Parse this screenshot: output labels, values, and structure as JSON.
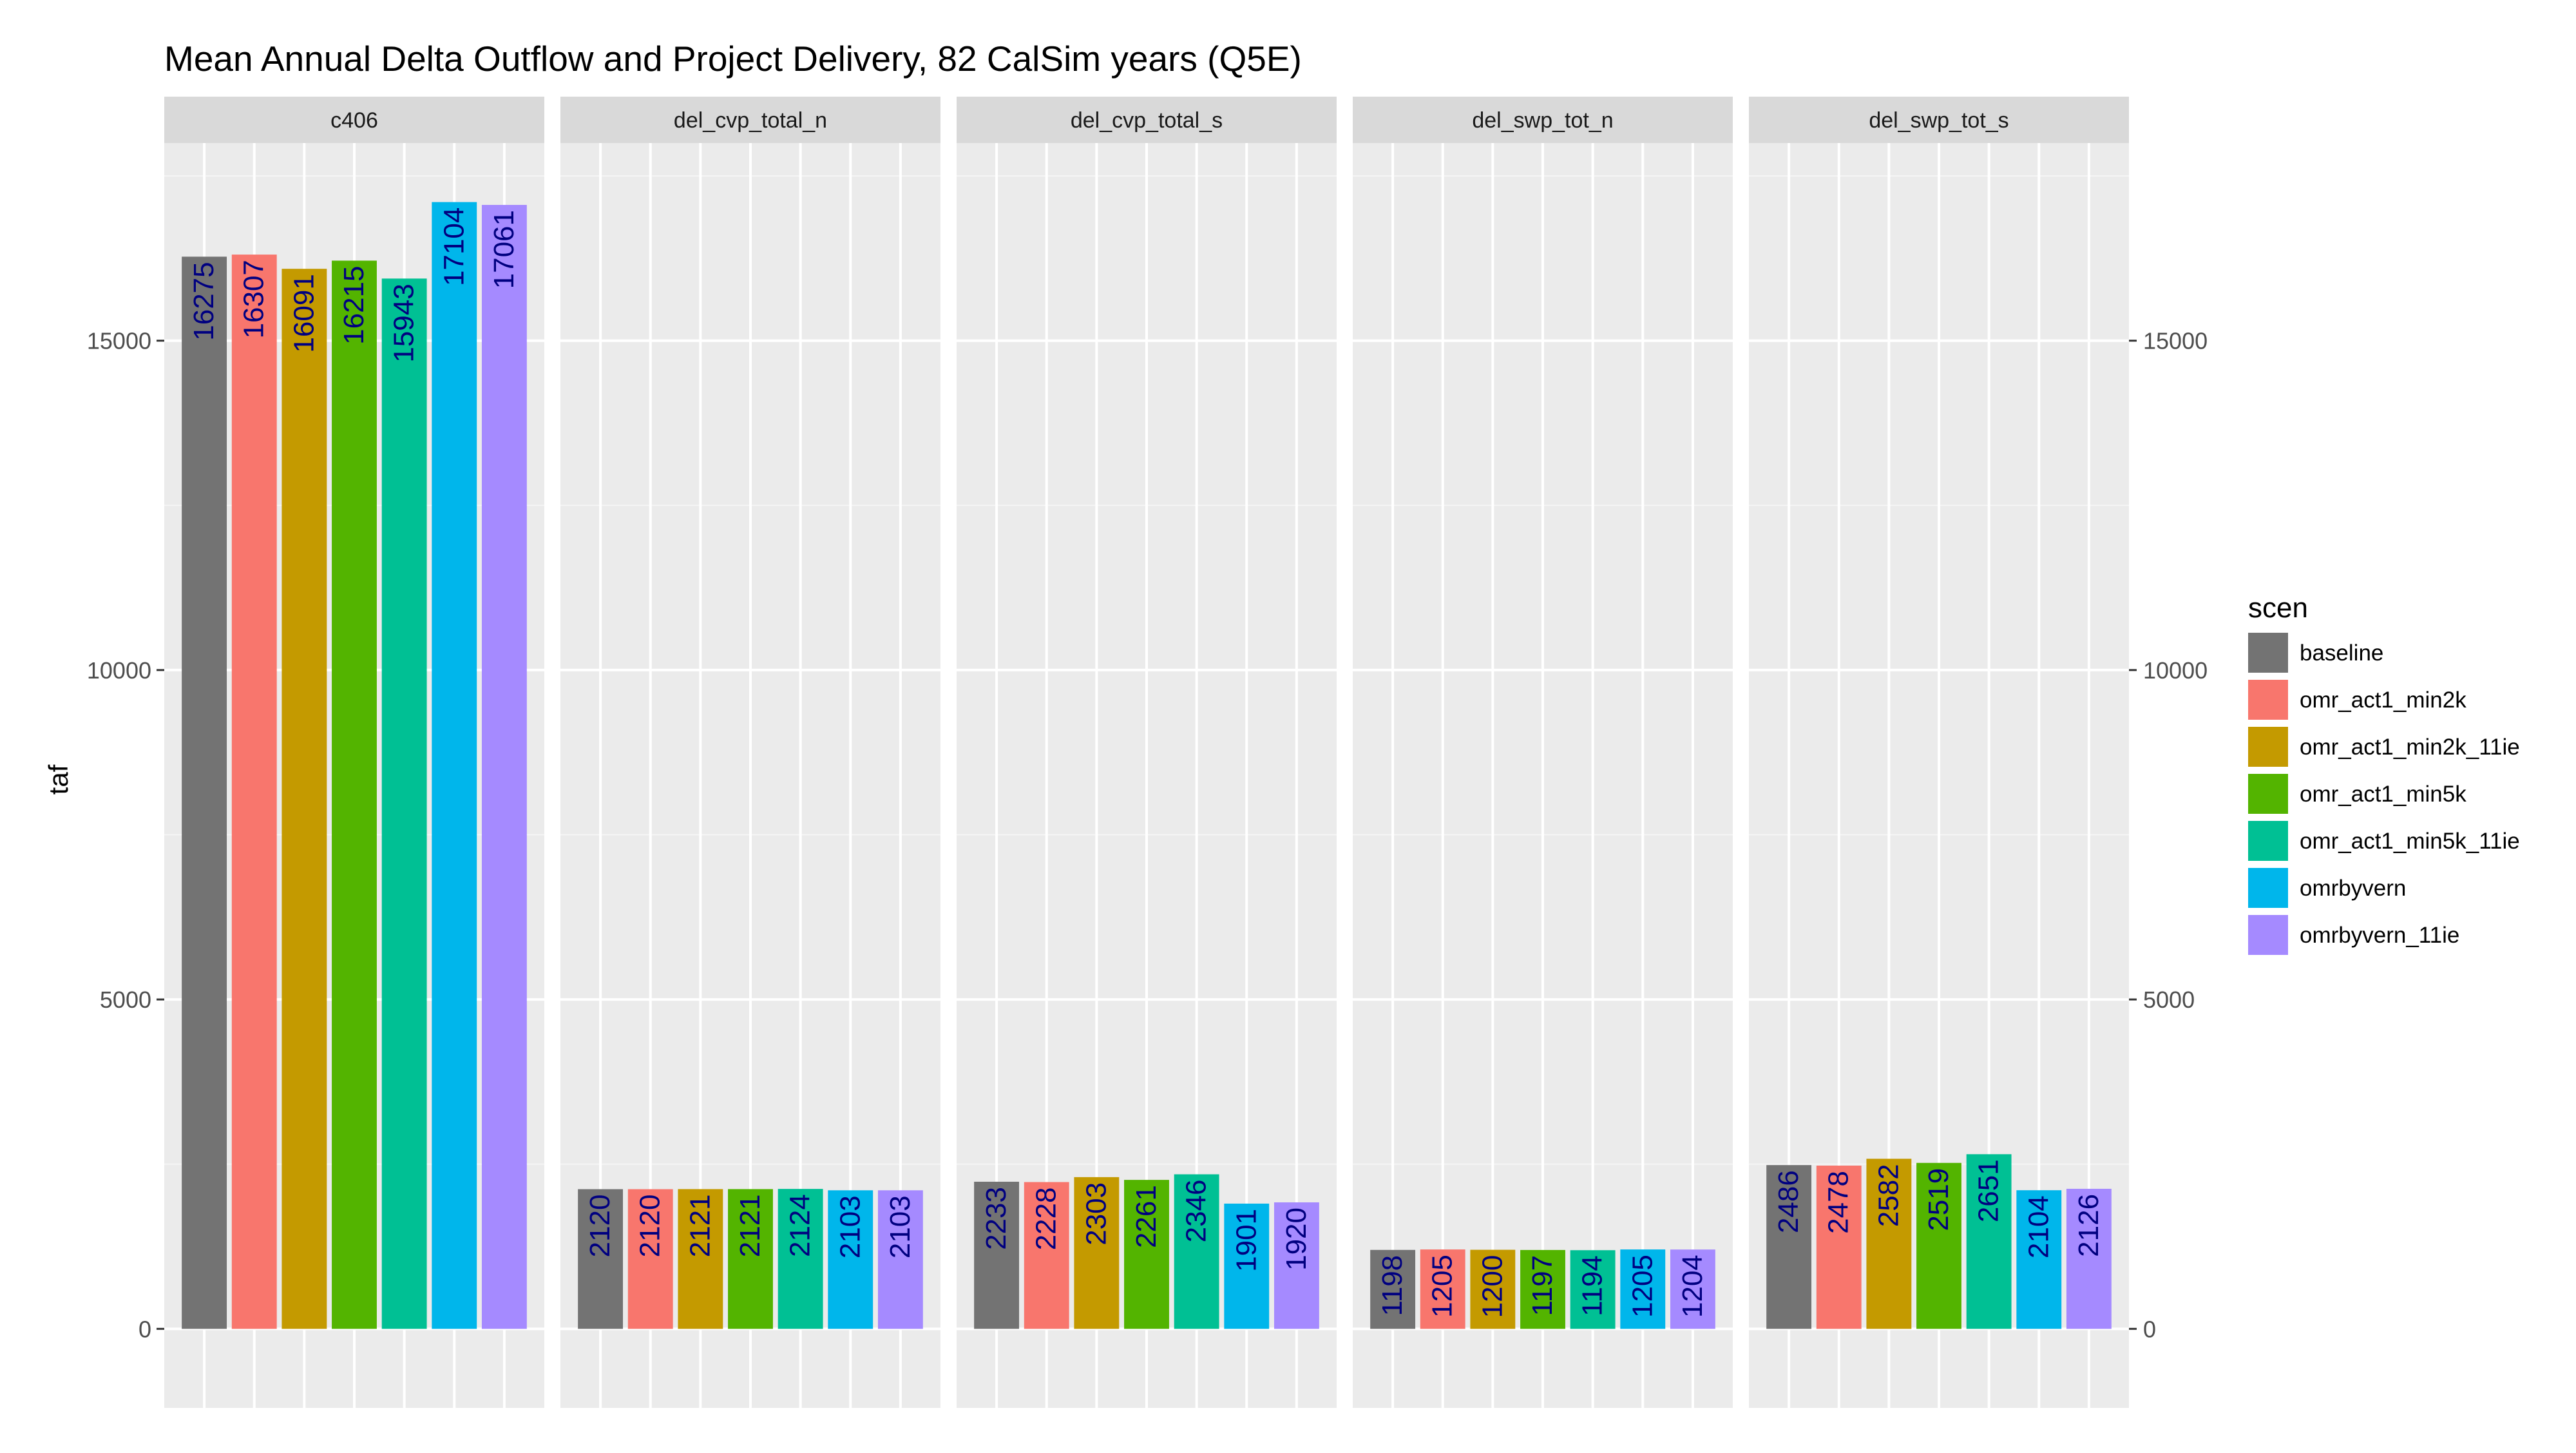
{
  "chart_data": {
    "type": "bar",
    "title": "Mean Annual Delta Outflow and Project Delivery, 82 CalSim years (Q5E)",
    "xlabel": "",
    "ylabel": "taf",
    "ylim": [
      -1200,
      18000
    ],
    "yticks": [
      0,
      5000,
      10000,
      15000
    ],
    "grid": true,
    "legend_title": "scen",
    "legend_position": "right",
    "label_color": "#000080",
    "series": [
      {
        "name": "baseline",
        "color": "#737373"
      },
      {
        "name": "omr_act1_min2k",
        "color": "#F8766D"
      },
      {
        "name": "omr_act1_min2k_11ie",
        "color": "#C49A00"
      },
      {
        "name": "omr_act1_min5k",
        "color": "#53B400"
      },
      {
        "name": "omr_act1_min5k_11ie",
        "color": "#00C094"
      },
      {
        "name": "omrbyvern",
        "color": "#00B6EB"
      },
      {
        "name": "omrbyvern_11ie",
        "color": "#A58AFF"
      }
    ],
    "panels": [
      {
        "label": "c406",
        "values": [
          16275,
          16307,
          16091,
          16215,
          15943,
          17104,
          17061
        ]
      },
      {
        "label": "del_cvp_total_n",
        "values": [
          2120,
          2120,
          2121,
          2121,
          2124,
          2103,
          2103
        ]
      },
      {
        "label": "del_cvp_total_s",
        "values": [
          2233,
          2228,
          2303,
          2261,
          2346,
          1901,
          1920
        ]
      },
      {
        "label": "del_swp_tot_n",
        "values": [
          1198,
          1205,
          1200,
          1197,
          1194,
          1205,
          1204
        ]
      },
      {
        "label": "del_swp_tot_s",
        "values": [
          2486,
          2478,
          2582,
          2519,
          2651,
          2104,
          2126
        ]
      }
    ]
  }
}
